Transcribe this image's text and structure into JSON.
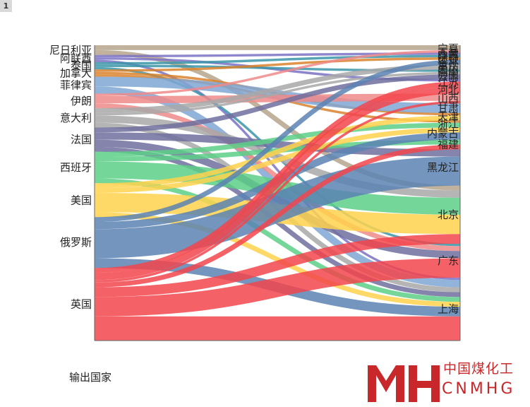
{
  "badge": "1",
  "chart_data": {
    "type": "sankey",
    "title": "",
    "xlabel": "输出国家",
    "left_nodes": [
      "尼日利亚",
      "阿联酋",
      "泰国",
      "加拿大",
      "菲律宾",
      "伊朗",
      "意大利",
      "法国",
      "西班牙",
      "美国",
      "俄罗斯",
      "英国"
    ],
    "right_nodes": [
      "宁夏",
      "西藏",
      "陕西",
      "辽宁",
      "吉林",
      "重庆",
      "四川",
      "海南",
      "云南",
      "江苏",
      "河北",
      "山西",
      "甘肃",
      "天津",
      "浙江",
      "内蒙古",
      "福建",
      "黑龙江",
      "北京",
      "广东",
      "上海"
    ],
    "right_labels_shown": [
      "宁夏",
      "西藏",
      "陕西",
      "辽宁",
      "吉林",
      "重庆",
      "四川",
      "海南",
      "云南",
      "江苏",
      "河北",
      "山西",
      "甘肃",
      "天津",
      "浙江",
      "内蒙古",
      "福建",
      "黑龙江",
      "北京",
      "广东",
      "上海"
    ],
    "colors": {
      "尼日利亚": "#b5a58c",
      "阿联酋": "#7b72c4",
      "泰国": "#3b95a8",
      "加拿大": "#d9822b",
      "菲律宾": "#7fa6d4",
      "伊朗": "#f08a8a",
      "意大利": "#a8a8a8",
      "法国": "#6e6e9e",
      "西班牙": "#5ccf86",
      "美国": "#ffd24d",
      "俄罗斯": "#5b82b3",
      "英国": "#f2454c"
    },
    "flows": [
      {
        "source": "尼日利亚",
        "target": "宁夏",
        "value": 2
      },
      {
        "source": "尼日利亚",
        "target": "北京",
        "value": 2
      },
      {
        "source": "阿联酋",
        "target": "西藏",
        "value": 1
      },
      {
        "source": "阿联酋",
        "target": "江苏",
        "value": 1
      },
      {
        "source": "阿联酋",
        "target": "上海",
        "value": 1
      },
      {
        "source": "泰国",
        "target": "陕西",
        "value": 1
      },
      {
        "source": "泰国",
        "target": "广东",
        "value": 1
      },
      {
        "source": "泰国",
        "target": "四川",
        "value": 1
      },
      {
        "source": "加拿大",
        "target": "辽宁",
        "value": 1
      },
      {
        "source": "加拿大",
        "target": "天津",
        "value": 1
      },
      {
        "source": "加拿大",
        "target": "浙江",
        "value": 1
      },
      {
        "source": "菲律宾",
        "target": "甘肃",
        "value": 4
      },
      {
        "source": "菲律宾",
        "target": "上海",
        "value": 3
      },
      {
        "source": "伊朗",
        "target": "山西",
        "value": 3
      },
      {
        "source": "伊朗",
        "target": "广东",
        "value": 2
      },
      {
        "source": "伊朗",
        "target": "宁夏",
        "value": 1
      },
      {
        "source": "意大利",
        "target": "重庆",
        "value": 2
      },
      {
        "source": "意大利",
        "target": "北京",
        "value": 3
      },
      {
        "source": "意大利",
        "target": "上海",
        "value": 2
      },
      {
        "source": "意大利",
        "target": "海南",
        "value": 1
      },
      {
        "source": "法国",
        "target": "黑龙江",
        "value": 3
      },
      {
        "source": "法国",
        "target": "云南",
        "value": 2
      },
      {
        "source": "法国",
        "target": "广东",
        "value": 3
      },
      {
        "source": "法国",
        "target": "上海",
        "value": 2
      },
      {
        "source": "西班牙",
        "target": "北京",
        "value": 7
      },
      {
        "source": "西班牙",
        "target": "浙江",
        "value": 2
      },
      {
        "source": "西班牙",
        "target": "福建",
        "value": 2
      },
      {
        "source": "西班牙",
        "target": "上海",
        "value": 2
      },
      {
        "source": "美国",
        "target": "北京",
        "value": 8
      },
      {
        "source": "美国",
        "target": "天津",
        "value": 2
      },
      {
        "source": "美国",
        "target": "内蒙古",
        "value": 2
      },
      {
        "source": "美国",
        "target": "上海",
        "value": 2
      },
      {
        "source": "俄罗斯",
        "target": "黑龙江",
        "value": 12
      },
      {
        "source": "俄罗斯",
        "target": "内蒙古",
        "value": 3
      },
      {
        "source": "俄罗斯",
        "target": "上海",
        "value": 4
      },
      {
        "source": "俄罗斯",
        "target": "吉林",
        "value": 2
      },
      {
        "source": "英国",
        "target": "上海",
        "value": 10
      },
      {
        "source": "英国",
        "target": "广东",
        "value": 8
      },
      {
        "source": "英国",
        "target": "北京",
        "value": 4
      },
      {
        "source": "英国",
        "target": "河北",
        "value": 3
      },
      {
        "source": "英国",
        "target": "福建",
        "value": 2
      },
      {
        "source": "英国",
        "target": "江苏",
        "value": 2
      },
      {
        "source": "英国",
        "target": "山西",
        "value": 1
      }
    ]
  },
  "logo": {
    "cn": "中国煤化工",
    "en": "CNMHG"
  }
}
